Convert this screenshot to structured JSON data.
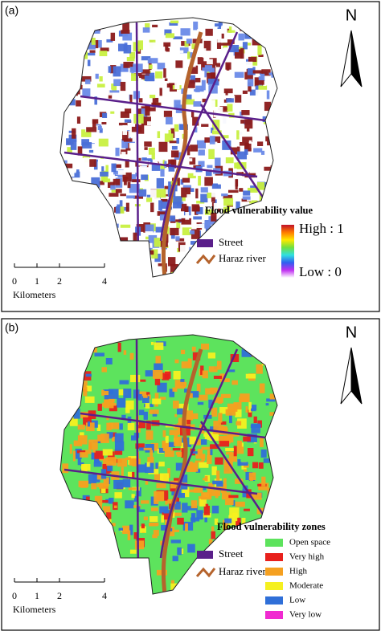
{
  "panels": [
    {
      "label": "(a)",
      "north": "N",
      "legend": {
        "title": "Flood vulnerability value",
        "high": "High : 1",
        "low": "Low : 0",
        "colors": [
          "#c0102a",
          "#ff7a00",
          "#ffe800",
          "#70e040",
          "#30e0e0",
          "#2f5ff0",
          "#c030f0",
          "#ffffff"
        ]
      },
      "street": "Street",
      "river": "Haraz river",
      "scale_bar": {
        "ticks": [
          0,
          1,
          2,
          4
        ],
        "unit": "Kilometers"
      }
    },
    {
      "label": "(b)",
      "north": "N",
      "legend": {
        "title": "Flood vulnerability zones",
        "items": [
          {
            "label": "Open space",
            "color": "#5de35d"
          },
          {
            "label": "Very high",
            "color": "#e8201c"
          },
          {
            "label": "High",
            "color": "#f5a020"
          },
          {
            "label": "Moderate",
            "color": "#f5f020"
          },
          {
            "label": "Low",
            "color": "#2f6fd8"
          },
          {
            "label": "Very low",
            "color": "#f02ad0"
          }
        ]
      },
      "street": "Street",
      "river": "Haraz river",
      "scale_bar": {
        "ticks": [
          0,
          1,
          2,
          4
        ],
        "unit": "Kilometers"
      }
    }
  ]
}
